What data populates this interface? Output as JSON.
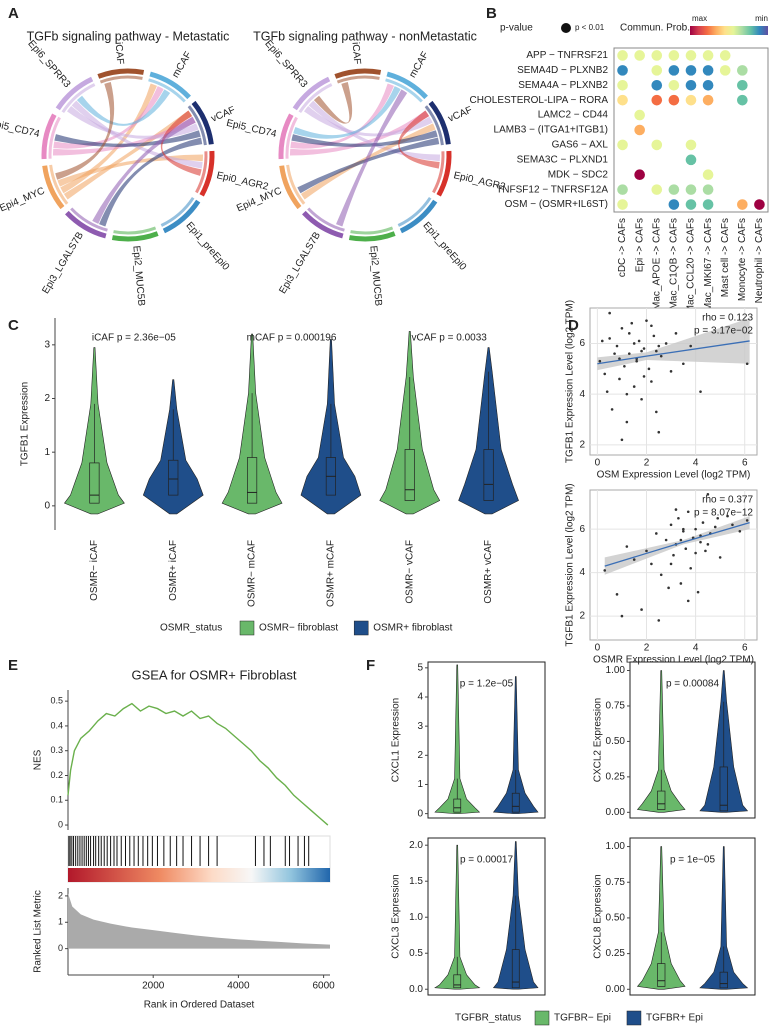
{
  "panel_labels": [
    "A",
    "B",
    "C",
    "D",
    "E",
    "F"
  ],
  "chart_data": [
    {
      "type": "chord",
      "title": "TGFb signaling pathway - Metastatic",
      "nodes": [
        {
          "label": "iCAF",
          "color": "#a0522d"
        },
        {
          "label": "mCAF",
          "color": "#5fb0dc"
        },
        {
          "label": "vCAF",
          "color": "#1d2f6f"
        },
        {
          "label": "Epi0_AGR2",
          "color": "#d7312a"
        },
        {
          "label": "Epi1_preEpi0",
          "color": "#3c8dc4"
        },
        {
          "label": "Epi2_MUC5B",
          "color": "#4daf4a"
        },
        {
          "label": "Epi3_LGALS7B",
          "color": "#8e5bb0"
        },
        {
          "label": "Epi4_MYC",
          "color": "#f0a35e"
        },
        {
          "label": "Epi5_CD74",
          "color": "#e78ac3"
        },
        {
          "label": "Epi6_SPRR3",
          "color": "#c6a9e0"
        }
      ],
      "links": [
        [
          "Epi4_MYC",
          "vCAF"
        ],
        [
          "Epi4_MYC",
          "mCAF"
        ],
        [
          "Epi4_MYC",
          "Epi0_AGR2"
        ],
        [
          "Epi5_CD74",
          "vCAF"
        ],
        [
          "Epi5_CD74",
          "mCAF"
        ],
        [
          "Epi6_SPRR3",
          "vCAF"
        ],
        [
          "Epi6_SPRR3",
          "Epi0_AGR2"
        ],
        [
          "vCAF",
          "Epi5_CD74"
        ],
        [
          "vCAF",
          "Epi3_LGALS7B"
        ],
        [
          "mCAF",
          "Epi6_SPRR3"
        ],
        [
          "iCAF",
          "Epi4_MYC"
        ],
        [
          "Epi0_AGR2",
          "vCAF"
        ],
        [
          "Epi3_LGALS7B",
          "vCAF"
        ]
      ]
    },
    {
      "type": "chord",
      "title": "TGFb signaling pathway - nonMetastatic",
      "nodes": [
        {
          "label": "iCAF",
          "color": "#a0522d"
        },
        {
          "label": "mCAF",
          "color": "#5fb0dc"
        },
        {
          "label": "vCAF",
          "color": "#1d2f6f"
        },
        {
          "label": "Epi0_AGR2",
          "color": "#d7312a"
        },
        {
          "label": "Epi1_preEpi0",
          "color": "#3c8dc4"
        },
        {
          "label": "Epi2_MUC5B",
          "color": "#4daf4a"
        },
        {
          "label": "Epi3_LGALS7B",
          "color": "#8e5bb0"
        },
        {
          "label": "Epi4_MYC",
          "color": "#f0a35e"
        },
        {
          "label": "Epi5_CD74",
          "color": "#e78ac3"
        },
        {
          "label": "Epi6_SPRR3",
          "color": "#c6a9e0"
        }
      ],
      "links": [
        [
          "Epi5_CD74",
          "vCAF"
        ],
        [
          "Epi5_CD74",
          "mCAF"
        ],
        [
          "Epi6_SPRR3",
          "vCAF"
        ],
        [
          "Epi6_SPRR3",
          "Epi0_AGR2"
        ],
        [
          "Epi4_MYC",
          "vCAF"
        ],
        [
          "vCAF",
          "Epi5_CD74"
        ],
        [
          "vCAF",
          "Epi4_MYC"
        ],
        [
          "mCAF",
          "Epi5_CD74"
        ],
        [
          "iCAF",
          "Epi6_SPRR3"
        ],
        [
          "Epi0_AGR2",
          "vCAF"
        ],
        [
          "Epi3_LGALS7B",
          "mCAF"
        ]
      ]
    },
    {
      "type": "dot",
      "rows": [
        "APP − TNFRSF21",
        "SEMA4D − PLXNB2",
        "SEMA4A − PLXNB2",
        "CHOLESTEROL-LIPA − RORA",
        "LAMC2 − CD44",
        "LAMB3 − (ITGA1+ITGB1)",
        "GAS6 − AXL",
        "SEMA3C − PLXND1",
        "MDK − SDC2",
        "TNFSF12 − TNFRSF12A",
        "OSM − (OSMR+IL6ST)"
      ],
      "cols": [
        "cDC -> CAFs",
        "Epi -> CAFs",
        "Mac_APOE -> CAFs",
        "Mac_C1QB -> CAFs",
        "Mac_CCL20 -> CAFs",
        "Mac_MKI67 -> CAFs",
        "Mast cell -> CAFs",
        "Monocyte -> CAFs",
        "Neutrophil -> CAFs"
      ],
      "row_colors": [
        "#222",
        "#222",
        "#222",
        "#222",
        "#222",
        "#222",
        "#222",
        "#222",
        "#222",
        "#222",
        "#c0392b"
      ],
      "col_colors": [
        "#222",
        "#222",
        "#222",
        "#222",
        "#222",
        "#222",
        "#222",
        "#222",
        "#c0392b"
      ],
      "values": [
        [
          0.4,
          0.4,
          0.4,
          0.4,
          0.4,
          0.4,
          0.4,
          null,
          null
        ],
        [
          0.15,
          null,
          0.4,
          0.15,
          0.15,
          0.1,
          0.45,
          0.35,
          null
        ],
        [
          0.4,
          null,
          0.15,
          0.45,
          0.15,
          0.15,
          null,
          0.2,
          null
        ],
        [
          0.55,
          null,
          0.75,
          0.8,
          0.6,
          0.7,
          null,
          0.25,
          null
        ],
        [
          null,
          0.45,
          null,
          null,
          null,
          null,
          null,
          null,
          null
        ],
        [
          null,
          0.7,
          null,
          null,
          null,
          null,
          null,
          null,
          null
        ],
        [
          0.4,
          null,
          0.45,
          null,
          0.5,
          null,
          null,
          null,
          null
        ],
        [
          null,
          null,
          null,
          null,
          0.25,
          null,
          null,
          null,
          null
        ],
        [
          null,
          0.95,
          null,
          null,
          null,
          0.5,
          null,
          null,
          null
        ],
        [
          0.35,
          null,
          0.4,
          0.35,
          0.35,
          0.35,
          null,
          null,
          null
        ],
        [
          0.4,
          null,
          null,
          0.15,
          0.2,
          0.25,
          null,
          0.7,
          0.98
        ]
      ],
      "clim": [
        0,
        1
      ],
      "color_scale": [
        "#9e0142",
        "#d53e4f",
        "#f46d43",
        "#fdae61",
        "#fee08b",
        "#e6f598",
        "#abdda4",
        "#66c2a5",
        "#3288bd",
        "#5e4fa2"
      ],
      "size_legend_title": "p-value",
      "size_legend_label": "p < 0.01",
      "color_legend_title": "Commun. Prob.",
      "color_max_label": "max",
      "color_min_label": "min"
    },
    {
      "type": "violin",
      "ylabel": "TGFB1 Expression",
      "ylim": [
        -0.45,
        3.5
      ],
      "yticks": [
        0,
        1,
        2,
        3
      ],
      "frame": false,
      "categories": [
        "OSMR− iCAF",
        "OSMR+ iCAF",
        "OSMR− mCAF",
        "OSMR+ mCAF",
        "OSMR− vCAF",
        "OSMR+ vCAF"
      ],
      "annotations": [
        "iCAF p = 2.36e−05",
        "mCAF p = 0.000196",
        "vCAF p = 0.0033"
      ],
      "colors": [
        "#69b86a",
        "#1f4e8a"
      ],
      "stats": {
        "min": [
          -0.15,
          -0.15,
          -0.15,
          -0.15,
          -0.15,
          -0.15
        ],
        "q1": [
          0.05,
          0.2,
          0.05,
          0.2,
          0.1,
          0.1
        ],
        "median": [
          0.2,
          0.5,
          0.25,
          0.55,
          0.3,
          0.4
        ],
        "q3": [
          0.8,
          0.85,
          0.9,
          0.9,
          1.05,
          1.05
        ],
        "whisker": [
          1.9,
          1.8,
          2.1,
          1.9,
          2.4,
          2.5
        ],
        "max": [
          2.95,
          2.35,
          3.2,
          3.1,
          3.25,
          2.95
        ]
      }
    },
    {
      "type": "legend",
      "title": "OSMR_status",
      "series": [
        {
          "name": "OSMR− fibroblast",
          "color": "#69b86a"
        },
        {
          "name": "OSMR+ fibroblast",
          "color": "#1f4e8a"
        }
      ]
    },
    {
      "type": "scatter",
      "xlabel": "OSM Expression Level (log2 TPM)",
      "ylabel": "TGFB1 Expression Level (log2 TPM)",
      "xlim": [
        -0.3,
        6.5
      ],
      "ylim": [
        1.6,
        7.4
      ],
      "xticks": [
        0,
        2,
        4,
        6
      ],
      "yticks": [
        2,
        4,
        6
      ],
      "grid": true,
      "point_color": "#333",
      "x": [
        0.1,
        0.3,
        0.5,
        0.6,
        0.8,
        0.9,
        1.0,
        1.1,
        1.2,
        1.3,
        1.4,
        1.5,
        1.6,
        1.7,
        1.8,
        1.9,
        2.0,
        2.1,
        2.2,
        2.3,
        2.4,
        2.5,
        2.6,
        2.8,
        3.0,
        3.2,
        3.5,
        3.8,
        4.2,
        6.1,
        0.2,
        0.4,
        0.7,
        1.0,
        1.3,
        1.6,
        1.9,
        2.2,
        2.5,
        0.5,
        1.2,
        1.8,
        2.4,
        0.9,
        1.5
      ],
      "y": [
        5.3,
        4.8,
        6.2,
        3.4,
        5.9,
        4.6,
        6.6,
        5.1,
        2.9,
        5.6,
        6.8,
        4.3,
        5.4,
        6.1,
        3.8,
        5.8,
        6.9,
        5.0,
        4.5,
        6.3,
        5.7,
        2.5,
        5.5,
        6.0,
        4.9,
        6.4,
        5.2,
        5.9,
        4.1,
        5.2,
        6.1,
        4.1,
        5.6,
        2.2,
        6.4,
        5.3,
        4.7,
        6.7,
        5.9,
        7.2,
        4.0,
        5.7,
        3.3,
        5.4,
        6.0
      ],
      "fit": {
        "x": [
          0,
          2,
          6.2
        ],
        "y": [
          5.2,
          5.5,
          6.1
        ],
        "ci_low": [
          4.95,
          5.35,
          5.2
        ],
        "ci_high": [
          5.45,
          5.65,
          7.0
        ],
        "color": "#3b6fb6",
        "band_color": "#c8c8c8"
      },
      "annotations": [
        "rho = 0.123",
        "p = 3.17e−02"
      ],
      "annotation_color": "#d62728"
    },
    {
      "type": "scatter",
      "xlabel": "OSMR Expression Level (log2 TPM)",
      "ylabel": "TGFB1 Expression Level (log2 TPM)",
      "xlim": [
        -0.3,
        6.5
      ],
      "ylim": [
        0.9,
        7.8
      ],
      "xticks": [
        0,
        2,
        4,
        6
      ],
      "yticks": [
        2,
        4,
        6
      ],
      "grid": true,
      "point_color": "#333",
      "x": [
        0.3,
        0.8,
        1.2,
        1.5,
        1.8,
        2.0,
        2.2,
        2.4,
        2.6,
        2.8,
        3.0,
        3.1,
        3.2,
        3.3,
        3.4,
        3.5,
        3.6,
        3.7,
        3.8,
        3.9,
        4.0,
        4.1,
        4.2,
        4.3,
        4.4,
        4.5,
        4.6,
        4.8,
        5.0,
        5.3,
        5.8,
        6.1,
        2.5,
        3.0,
        3.5,
        4.0,
        4.5,
        3.2,
        3.7,
        4.2,
        2.9,
        3.4,
        1.0,
        5.5,
        4.9
      ],
      "y": [
        4.1,
        3.0,
        5.2,
        4.6,
        2.3,
        5.0,
        4.4,
        5.8,
        3.9,
        5.5,
        6.2,
        4.8,
        5.3,
        6.5,
        3.5,
        5.9,
        5.1,
        6.8,
        4.2,
        5.6,
        6.0,
        3.1,
        5.4,
        6.3,
        5.0,
        7.6,
        5.8,
        6.1,
        4.7,
        6.6,
        5.9,
        6.4,
        1.8,
        4.4,
        6.0,
        4.9,
        5.3,
        6.9,
        2.7,
        5.7,
        3.3,
        5.5,
        2.0,
        6.2,
        6.5
      ],
      "fit": {
        "x": [
          0.3,
          3.5,
          6.2
        ],
        "y": [
          4.3,
          5.4,
          6.3
        ],
        "ci_low": [
          3.9,
          5.3,
          6.0
        ],
        "ci_high": [
          4.7,
          5.5,
          6.6
        ],
        "color": "#3b6fb6",
        "band_color": "#c8c8c8"
      },
      "annotations": [
        "rho = 0.377",
        "p = 8.07e−12"
      ],
      "annotation_color": "#d62728"
    },
    {
      "type": "gsea",
      "title": "GSEA for OSMR+ Fibroblast",
      "xlim": [
        0,
        6150
      ],
      "xticks": [
        2000,
        4000,
        6000
      ],
      "xlabel": "Rank in Ordered Dataset",
      "running": {
        "ylabel": "NES",
        "ylim": [
          -0.02,
          0.545
        ],
        "yticks": [
          0,
          0.1,
          0.2,
          0.3,
          0.4,
          0.5
        ],
        "color": "#6ab04c",
        "x": [
          0,
          60,
          150,
          300,
          500,
          700,
          900,
          1100,
          1300,
          1500,
          1700,
          1900,
          2100,
          2300,
          2500,
          2700,
          2900,
          3100,
          3300,
          3500,
          3700,
          3900,
          4100,
          4300,
          4500,
          4700,
          4900,
          5100,
          5300,
          5500,
          5700,
          5900,
          6100
        ],
        "y": [
          0.12,
          0.22,
          0.3,
          0.35,
          0.38,
          0.42,
          0.45,
          0.44,
          0.47,
          0.49,
          0.46,
          0.48,
          0.47,
          0.45,
          0.46,
          0.44,
          0.46,
          0.43,
          0.44,
          0.41,
          0.39,
          0.36,
          0.33,
          0.3,
          0.26,
          0.23,
          0.19,
          0.16,
          0.12,
          0.09,
          0.06,
          0.03,
          0.0
        ]
      },
      "hits": [
        20,
        50,
        90,
        130,
        180,
        230,
        280,
        330,
        380,
        430,
        480,
        530,
        600,
        650,
        720,
        780,
        850,
        920,
        1000,
        1080,
        1150,
        1250,
        1350,
        1450,
        1550,
        1650,
        1760,
        1870,
        1980,
        2100,
        2250,
        2400,
        2550,
        2700,
        2900,
        3100,
        3300,
        3500,
        4400,
        4600,
        4750,
        5100,
        5200,
        5400,
        5550,
        5650
      ],
      "metric": {
        "ylabel": "Ranked List Metric",
        "ylim": [
          -1,
          2.3
        ],
        "yticks": [
          0,
          1,
          2
        ],
        "color": "#aaaaaa",
        "x": [
          0,
          100,
          300,
          600,
          1000,
          1500,
          2000,
          2500,
          3000,
          3500,
          4000,
          4500,
          5000,
          5500,
          6150
        ],
        "y": [
          2.1,
          1.6,
          1.3,
          1.1,
          0.95,
          0.8,
          0.7,
          0.6,
          0.5,
          0.42,
          0.35,
          0.3,
          0.25,
          0.2,
          0.15
        ]
      }
    },
    {
      "type": "violin",
      "ylabel": "CXCL1 Expression",
      "ylim": [
        -0.15,
        5.2
      ],
      "yticks": [
        0,
        1,
        2,
        3,
        4,
        5
      ],
      "frame": true,
      "categories": [
        null,
        null
      ],
      "annotations": [
        "p = 1.2e−05"
      ],
      "colors": [
        "#69b86a",
        "#1f4e8a"
      ],
      "stats": {
        "min": [
          0,
          0
        ],
        "q1": [
          0.05,
          0.05
        ],
        "median": [
          0.2,
          0.25
        ],
        "q3": [
          0.5,
          0.7
        ],
        "whisker": [
          1.2,
          1.5
        ],
        "max": [
          5.1,
          4.7
        ]
      }
    },
    {
      "type": "violin",
      "ylabel": "CXCL2 Expression",
      "ylim": [
        -0.04,
        1.06
      ],
      "yticks": [
        {
          "value": 0,
          "label": "0.00"
        },
        {
          "value": 0.25,
          "label": "0.25"
        },
        {
          "value": 0.5,
          "label": "0.50"
        },
        {
          "value": 0.75,
          "label": "0.75"
        },
        {
          "value": 1,
          "label": "1.00"
        }
      ],
      "frame": true,
      "categories": [
        null,
        null
      ],
      "annotations": [
        "p = 0.00084"
      ],
      "colors": [
        "#69b86a",
        "#1f4e8a"
      ],
      "stats": {
        "min": [
          0,
          0
        ],
        "q1": [
          0.02,
          0.01
        ],
        "median": [
          0.06,
          0.05
        ],
        "q3": [
          0.15,
          0.32
        ],
        "whisker": [
          0.3,
          0.78
        ],
        "max": [
          1.0,
          1.0
        ]
      }
    },
    {
      "type": "violin",
      "ylabel": "CXCL3 Expression",
      "ylim": [
        -0.08,
        2.1
      ],
      "yticks": [
        {
          "value": 0,
          "label": "0.0"
        },
        {
          "value": 0.5,
          "label": "0.5"
        },
        {
          "value": 1,
          "label": "1.0"
        },
        {
          "value": 1.5,
          "label": "1.5"
        },
        {
          "value": 2,
          "label": "2.0"
        }
      ],
      "frame": true,
      "categories": [
        null,
        null
      ],
      "annotations": [
        "p = 0.00017"
      ],
      "colors": [
        "#69b86a",
        "#1f4e8a"
      ],
      "stats": {
        "min": [
          0,
          0
        ],
        "q1": [
          0.02,
          0.02
        ],
        "median": [
          0.06,
          0.1
        ],
        "q3": [
          0.2,
          0.55
        ],
        "whisker": [
          0.45,
          1.3
        ],
        "max": [
          2.0,
          2.05
        ]
      }
    },
    {
      "type": "violin",
      "ylabel": "CXCL8 Expression",
      "ylim": [
        -0.04,
        1.06
      ],
      "yticks": [
        {
          "value": 0,
          "label": "0.00"
        },
        {
          "value": 0.25,
          "label": "0.25"
        },
        {
          "value": 0.5,
          "label": "0.50"
        },
        {
          "value": 0.75,
          "label": "0.75"
        },
        {
          "value": 1,
          "label": "1.00"
        }
      ],
      "frame": true,
      "categories": [
        null,
        null
      ],
      "annotations": [
        "p = 1e−05"
      ],
      "colors": [
        "#69b86a",
        "#1f4e8a"
      ],
      "stats": {
        "min": [
          0,
          0
        ],
        "q1": [
          0.02,
          0.01
        ],
        "median": [
          0.06,
          0.04
        ],
        "q3": [
          0.18,
          0.12
        ],
        "whisker": [
          0.4,
          0.3
        ],
        "max": [
          1.0,
          1.0
        ]
      }
    },
    {
      "type": "legend",
      "title": "TGFBR_status",
      "series": [
        {
          "name": "TGFBR− Epi",
          "color": "#69b86a"
        },
        {
          "name": "TGFBR+ Epi",
          "color": "#1f4e8a"
        }
      ]
    }
  ]
}
